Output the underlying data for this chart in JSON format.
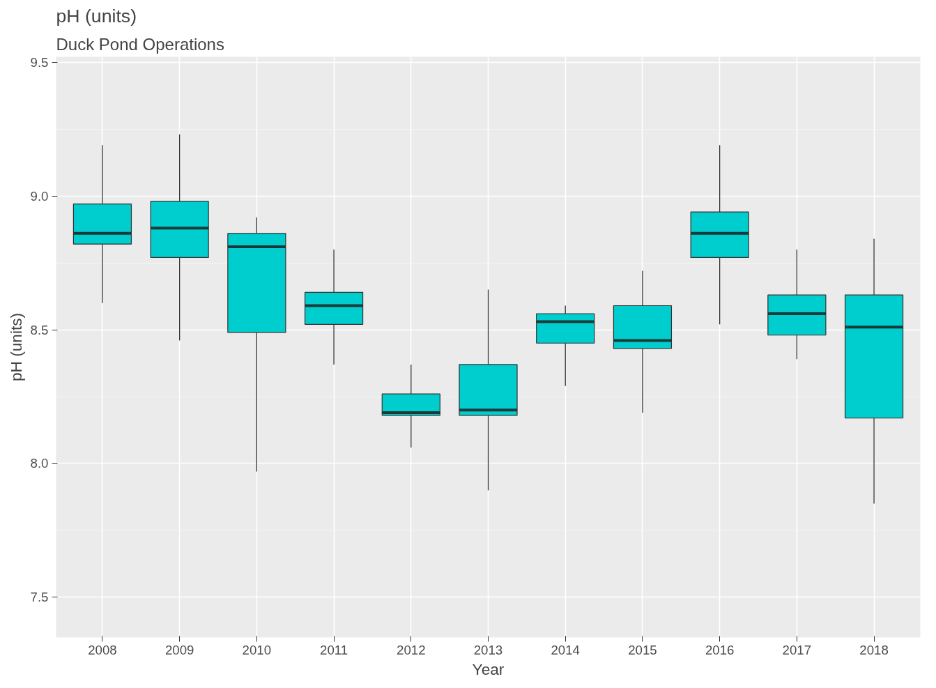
{
  "chart_data": {
    "type": "box",
    "title": "pH (units)",
    "subtitle": "Duck Pond Operations",
    "xlabel": "Year",
    "ylabel": "pH (units)",
    "categories": [
      "2008",
      "2009",
      "2010",
      "2011",
      "2012",
      "2013",
      "2014",
      "2015",
      "2016",
      "2017",
      "2018"
    ],
    "color": "#00cdcd",
    "ylim": [
      7.35,
      9.52
    ],
    "yticks": [
      7.5,
      {
        "value": 8,
        "label": "8.0"
      },
      8.5,
      {
        "value": 9,
        "label": "9.0"
      },
      9.5
    ],
    "grid": true,
    "boxes": [
      {
        "low": 8.6,
        "q1": 8.82,
        "median": 8.86,
        "q3": 8.97,
        "high": 9.19
      },
      {
        "low": 8.46,
        "q1": 8.77,
        "median": 8.88,
        "q3": 8.98,
        "high": 9.23
      },
      {
        "low": 7.97,
        "q1": 8.49,
        "median": 8.81,
        "q3": 8.86,
        "high": 8.92
      },
      {
        "low": 8.37,
        "q1": 8.52,
        "median": 8.59,
        "q3": 8.64,
        "high": 8.8
      },
      {
        "low": 8.06,
        "q1": 8.18,
        "median": 8.19,
        "q3": 8.26,
        "high": 8.37
      },
      {
        "low": 7.9,
        "q1": 8.18,
        "median": 8.2,
        "q3": 8.37,
        "high": 8.65
      },
      {
        "low": 8.29,
        "q1": 8.45,
        "median": 8.53,
        "q3": 8.56,
        "high": 8.59
      },
      {
        "low": 8.19,
        "q1": 8.43,
        "median": 8.46,
        "q3": 8.59,
        "high": 8.72
      },
      {
        "low": 8.52,
        "q1": 8.77,
        "median": 8.86,
        "q3": 8.94,
        "high": 9.19
      },
      {
        "low": 8.39,
        "q1": 8.48,
        "median": 8.56,
        "q3": 8.63,
        "high": 8.8
      },
      {
        "low": 7.85,
        "q1": 8.17,
        "median": 8.51,
        "q3": 8.63,
        "high": 8.84
      }
    ]
  }
}
